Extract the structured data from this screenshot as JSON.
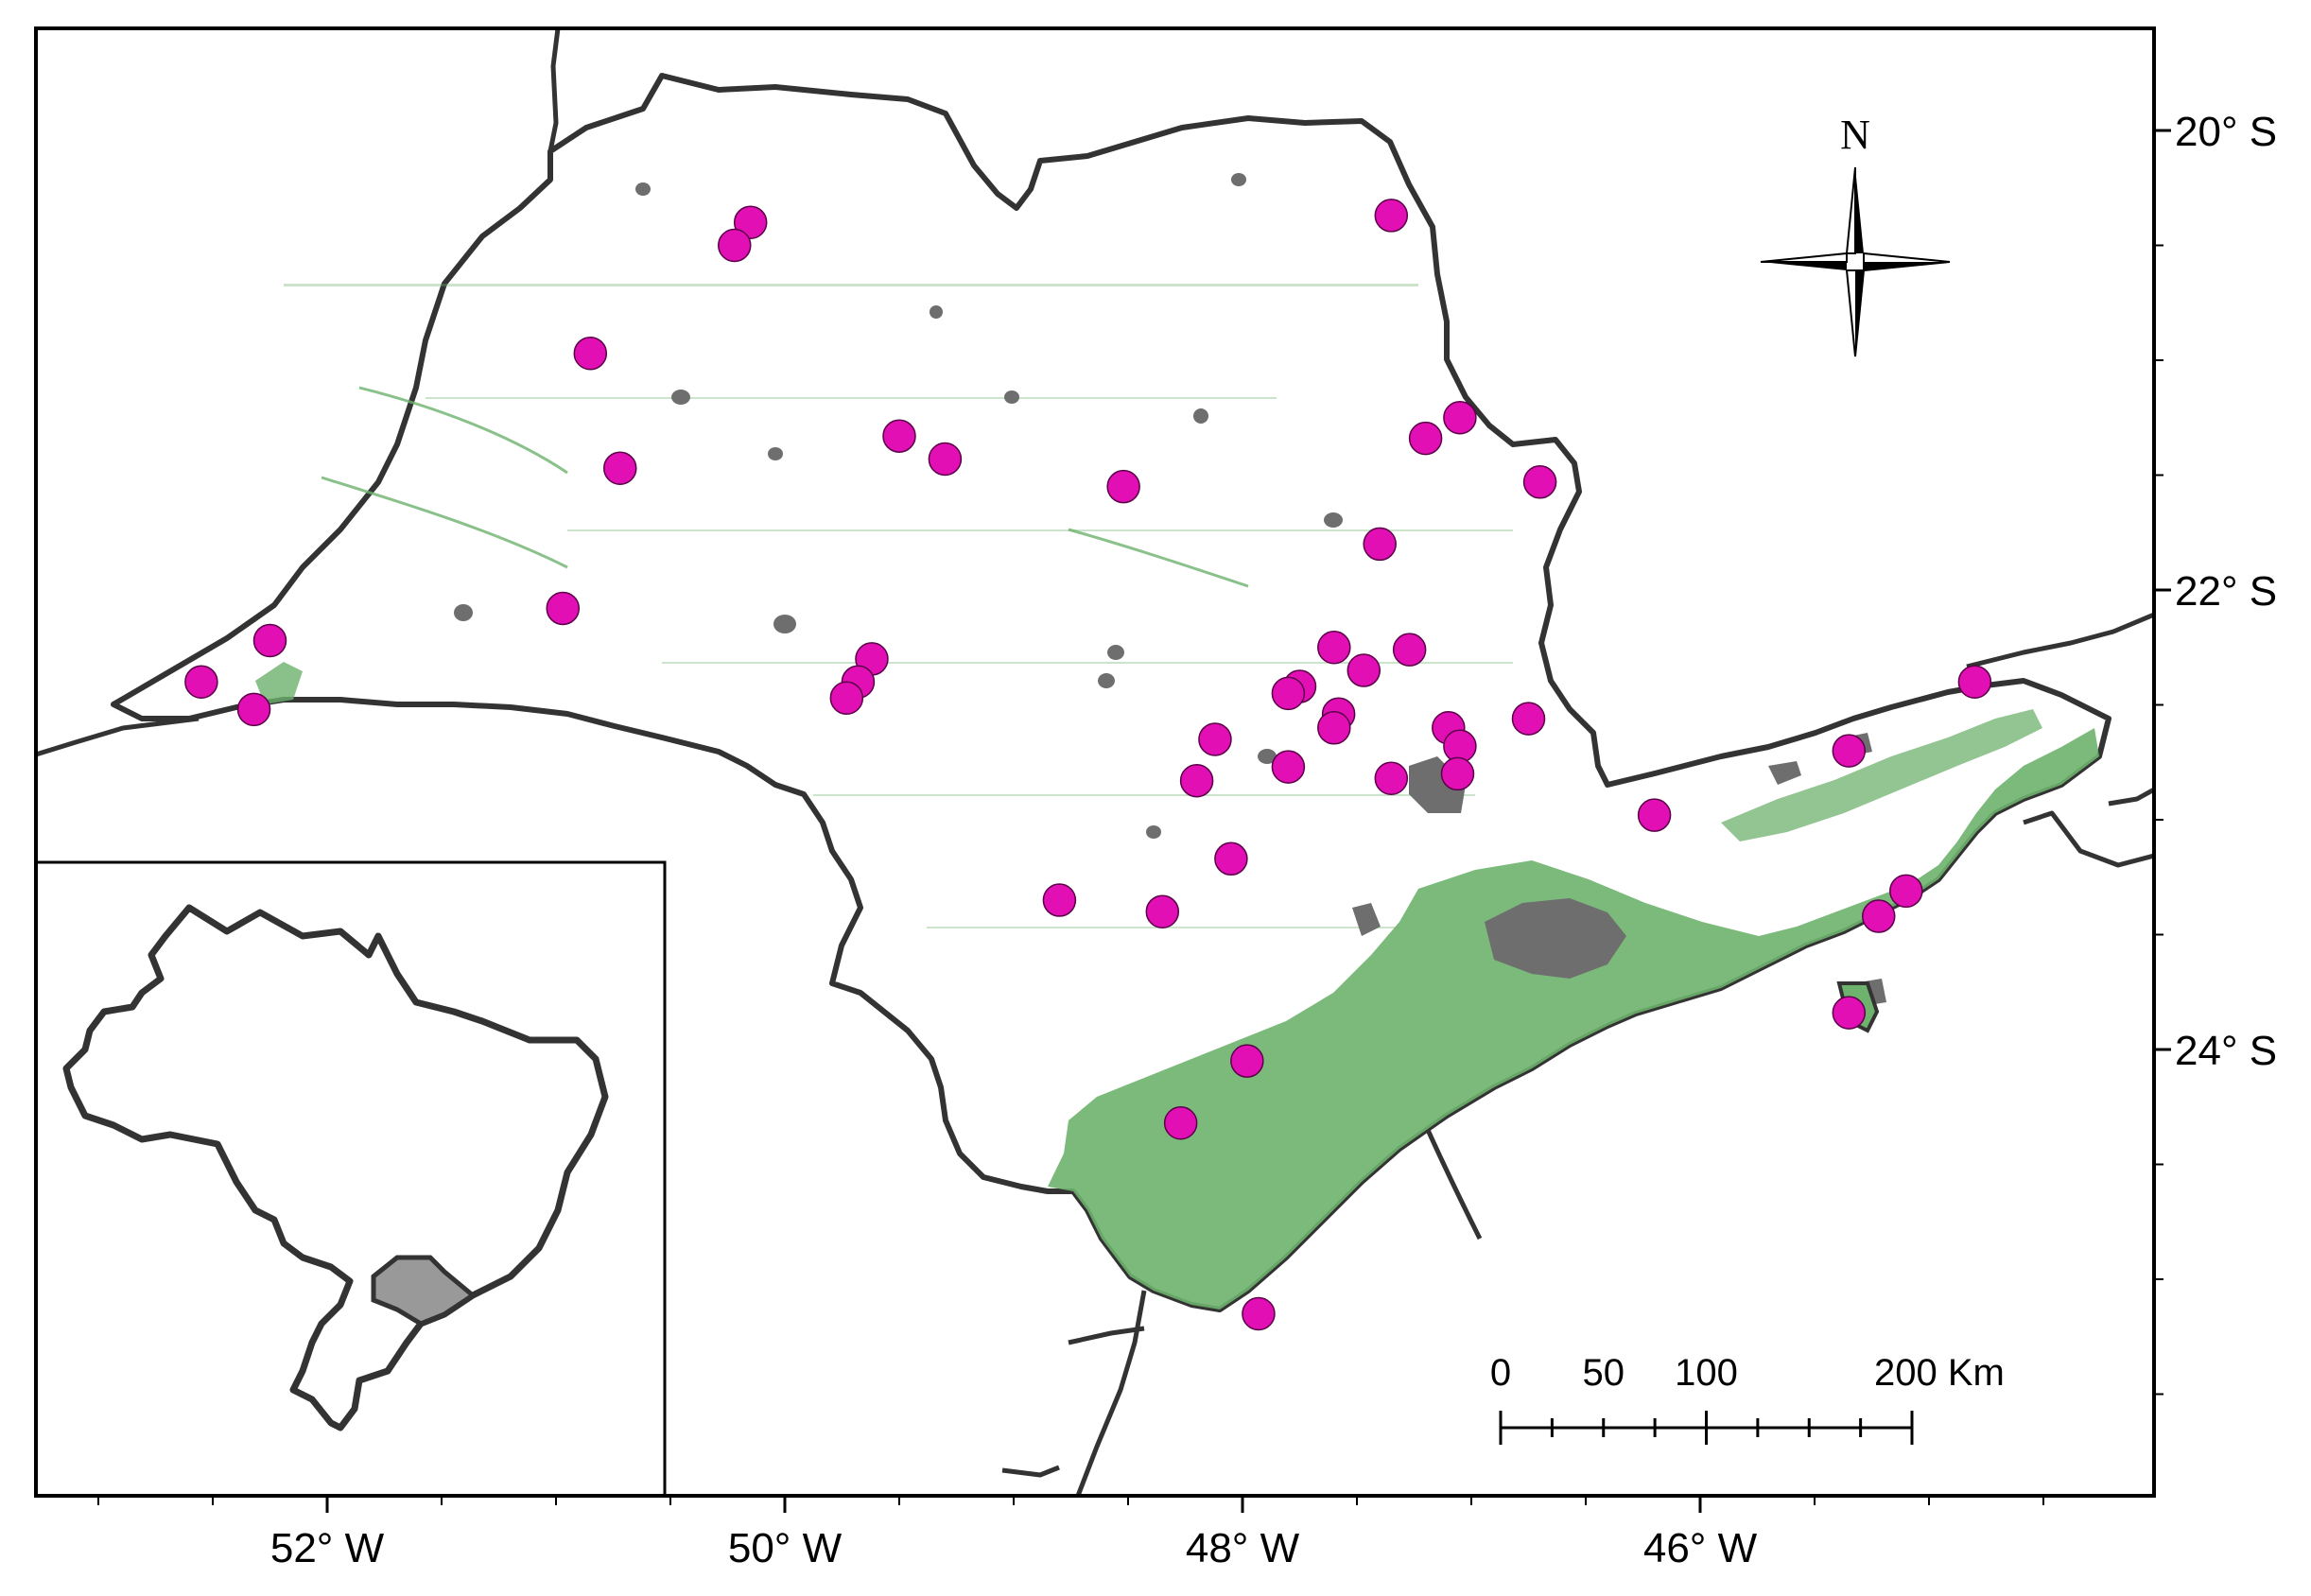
{
  "map": {
    "lat_labels": [
      {
        "text": "20° S",
        "lat": -20
      },
      {
        "text": "22° S",
        "lat": -22
      },
      {
        "text": "24° S",
        "lat": -24
      }
    ],
    "lon_labels": [
      {
        "text": "52° W",
        "lon": -52
      },
      {
        "text": "50° W",
        "lon": -50
      },
      {
        "text": "48° W",
        "lon": -48
      },
      {
        "text": "46° W",
        "lon": -46
      }
    ],
    "north_label": "N",
    "scale_bar": {
      "labels": [
        "0",
        "50",
        "100",
        "200 Km"
      ],
      "km": [
        0,
        50,
        100,
        200
      ]
    },
    "colors": {
      "state_fill": "#ffffff",
      "border": "#333333",
      "forest": "#6db26d",
      "urban": "#6e6e6e",
      "site_point": "#e20fb4",
      "inset_state": "#999999"
    },
    "inset": {
      "country": "Brazil",
      "highlight": "São Paulo"
    },
    "sites": [
      {
        "lon": -50.15,
        "lat": -20.4
      },
      {
        "lon": -50.22,
        "lat": -20.5
      },
      {
        "lon": -47.35,
        "lat": -20.37
      },
      {
        "lon": -50.85,
        "lat": -20.97
      },
      {
        "lon": -49.5,
        "lat": -21.33
      },
      {
        "lon": -49.3,
        "lat": -21.43
      },
      {
        "lon": -50.72,
        "lat": -21.47
      },
      {
        "lon": -48.52,
        "lat": -21.55
      },
      {
        "lon": -47.2,
        "lat": -21.34
      },
      {
        "lon": -47.05,
        "lat": -21.25
      },
      {
        "lon": -46.7,
        "lat": -21.53
      },
      {
        "lon": -47.4,
        "lat": -21.8
      },
      {
        "lon": -50.97,
        "lat": -22.08
      },
      {
        "lon": -52.25,
        "lat": -22.22
      },
      {
        "lon": -52.55,
        "lat": -22.4
      },
      {
        "lon": -52.32,
        "lat": -22.52
      },
      {
        "lon": -49.62,
        "lat": -22.3
      },
      {
        "lon": -49.68,
        "lat": -22.4
      },
      {
        "lon": -49.73,
        "lat": -22.47
      },
      {
        "lon": -47.6,
        "lat": -22.25
      },
      {
        "lon": -47.27,
        "lat": -22.26
      },
      {
        "lon": -47.47,
        "lat": -22.35
      },
      {
        "lon": -47.75,
        "lat": -22.42
      },
      {
        "lon": -47.8,
        "lat": -22.45
      },
      {
        "lon": -47.58,
        "lat": -22.54
      },
      {
        "lon": -47.6,
        "lat": -22.6
      },
      {
        "lon": -47.1,
        "lat": -22.6
      },
      {
        "lon": -47.05,
        "lat": -22.68
      },
      {
        "lon": -46.75,
        "lat": -22.56
      },
      {
        "lon": -48.12,
        "lat": -22.65
      },
      {
        "lon": -47.8,
        "lat": -22.77
      },
      {
        "lon": -48.2,
        "lat": -22.83
      },
      {
        "lon": -47.35,
        "lat": -22.82
      },
      {
        "lon": -47.06,
        "lat": -22.8
      },
      {
        "lon": -46.2,
        "lat": -22.98
      },
      {
        "lon": -48.05,
        "lat": -23.17
      },
      {
        "lon": -48.8,
        "lat": -23.35
      },
      {
        "lon": -48.35,
        "lat": -23.4
      },
      {
        "lon": -45.35,
        "lat": -22.7
      },
      {
        "lon": -44.8,
        "lat": -22.4
      },
      {
        "lon": -45.1,
        "lat": -23.31
      },
      {
        "lon": -45.22,
        "lat": -23.42
      },
      {
        "lon": -45.35,
        "lat": -23.84
      },
      {
        "lon": -47.98,
        "lat": -24.05
      },
      {
        "lon": -48.27,
        "lat": -24.32
      },
      {
        "lon": -47.93,
        "lat": -25.15
      }
    ]
  }
}
